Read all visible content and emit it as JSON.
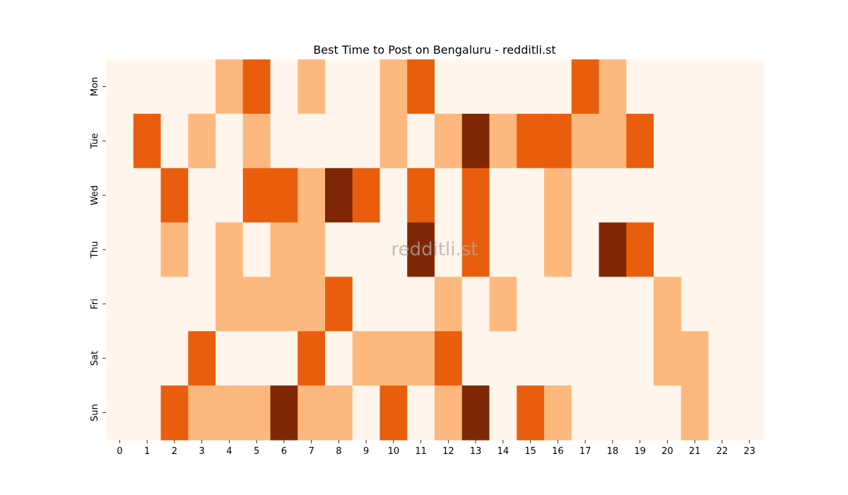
{
  "chart_data": {
    "type": "heatmap",
    "title": "Best Time to Post on Bengaluru - redditli.st",
    "xlabel": "",
    "ylabel": "",
    "x": [
      "0",
      "1",
      "2",
      "3",
      "4",
      "5",
      "6",
      "7",
      "8",
      "9",
      "10",
      "11",
      "12",
      "13",
      "14",
      "15",
      "16",
      "17",
      "18",
      "19",
      "20",
      "21",
      "22",
      "23"
    ],
    "y": [
      "Mon",
      "Tue",
      "Wed",
      "Thu",
      "Fri",
      "Sat",
      "Sun"
    ],
    "values": [
      [
        0,
        0,
        0,
        0,
        1,
        2,
        0,
        1,
        0,
        0,
        1,
        2,
        0,
        0,
        0,
        0,
        0,
        2,
        1,
        0,
        0,
        0,
        0,
        0
      ],
      [
        0,
        2,
        0,
        1,
        0,
        1,
        0,
        0,
        0,
        0,
        1,
        0,
        1,
        3,
        1,
        2,
        2,
        1,
        1,
        2,
        0,
        0,
        0,
        0
      ],
      [
        0,
        0,
        2,
        0,
        0,
        2,
        2,
        1,
        3,
        2,
        0,
        2,
        0,
        2,
        0,
        0,
        1,
        0,
        0,
        0,
        0,
        0,
        0,
        0
      ],
      [
        0,
        0,
        1,
        0,
        1,
        0,
        1,
        1,
        0,
        0,
        0,
        3,
        0,
        2,
        0,
        0,
        1,
        0,
        3,
        2,
        0,
        0,
        0,
        0
      ],
      [
        0,
        0,
        0,
        0,
        1,
        1,
        1,
        1,
        2,
        0,
        0,
        0,
        1,
        0,
        1,
        0,
        0,
        0,
        0,
        0,
        1,
        0,
        0,
        0
      ],
      [
        0,
        0,
        0,
        2,
        0,
        0,
        0,
        2,
        0,
        1,
        1,
        1,
        2,
        0,
        0,
        0,
        0,
        0,
        0,
        0,
        1,
        1,
        0,
        0
      ],
      [
        0,
        0,
        2,
        1,
        1,
        1,
        3,
        1,
        1,
        0,
        2,
        0,
        1,
        3,
        0,
        2,
        1,
        0,
        0,
        0,
        0,
        1,
        0,
        0
      ]
    ],
    "colorscale": [
      "#fff5eb",
      "#fdb97d",
      "#e95e0d",
      "#7f2704"
    ],
    "watermark": "redditli.st"
  }
}
